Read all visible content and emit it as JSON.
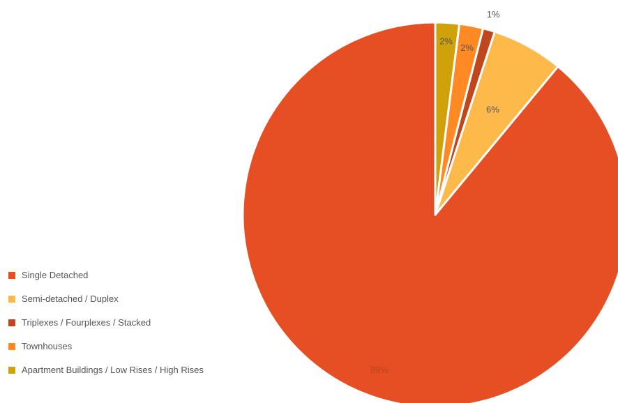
{
  "chart_data": {
    "type": "pie",
    "title": "",
    "legend_position": "left-bottom",
    "slices": [
      {
        "label": "Single Detached",
        "value": 89,
        "display": "89%",
        "color": "#E64E23",
        "label_color": "#B8471F"
      },
      {
        "label": "Semi-detached / Duplex",
        "value": 6,
        "display": "6%",
        "color": "#FDB94A",
        "label_color": "#555555"
      },
      {
        "label": "Triplexes / Fourplexes / Stacked",
        "value": 1,
        "display": "1%",
        "color": "#C0461E",
        "label_color": "#555555"
      },
      {
        "label": "Townhouses",
        "value": 2,
        "display": "2%",
        "color": "#FF8A24",
        "label_color": "#555555"
      },
      {
        "label": "Apartment Buildings / Low Rises / High Rises",
        "value": 2,
        "display": "2%",
        "color": "#CFA20C",
        "label_color": "#555555"
      }
    ]
  }
}
